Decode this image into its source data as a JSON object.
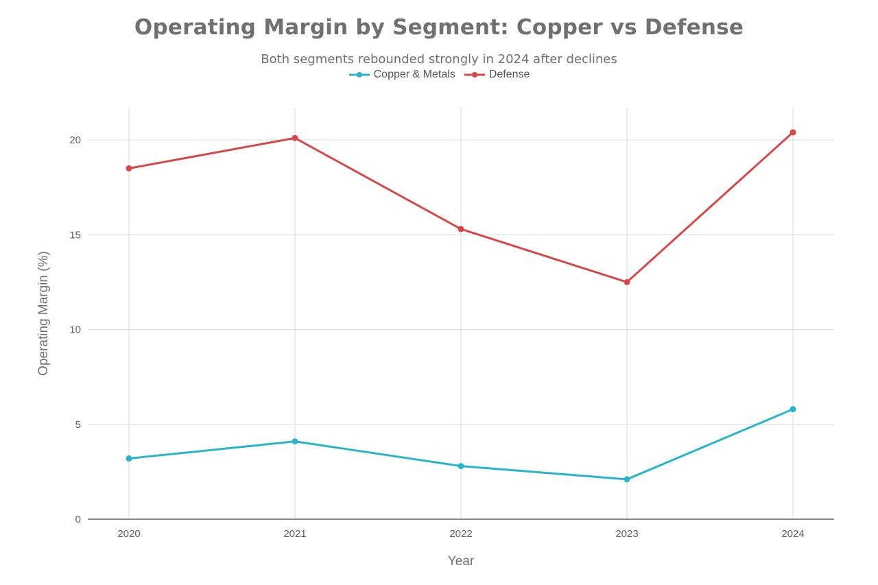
{
  "chart_data": {
    "type": "line",
    "title": "Operating Margin by Segment: Copper vs Defense",
    "subtitle": "Both segments rebounded strongly in 2024 after declines",
    "xlabel": "Year",
    "ylabel": "Operating Margin (%)",
    "categories": [
      "2020",
      "2021",
      "2022",
      "2023",
      "2024"
    ],
    "yticks": [
      0,
      5,
      10,
      15,
      20
    ],
    "ylim": [
      0,
      21.7
    ],
    "grid": true,
    "legend_position": "top-center",
    "series": [
      {
        "name": "Copper & Metals",
        "color": "#26b5cb",
        "values": [
          3.2,
          4.1,
          2.8,
          2.1,
          5.8
        ]
      },
      {
        "name": "Defense",
        "color": "#d64848",
        "values": [
          18.5,
          20.1,
          15.3,
          12.5,
          20.4
        ]
      }
    ]
  }
}
